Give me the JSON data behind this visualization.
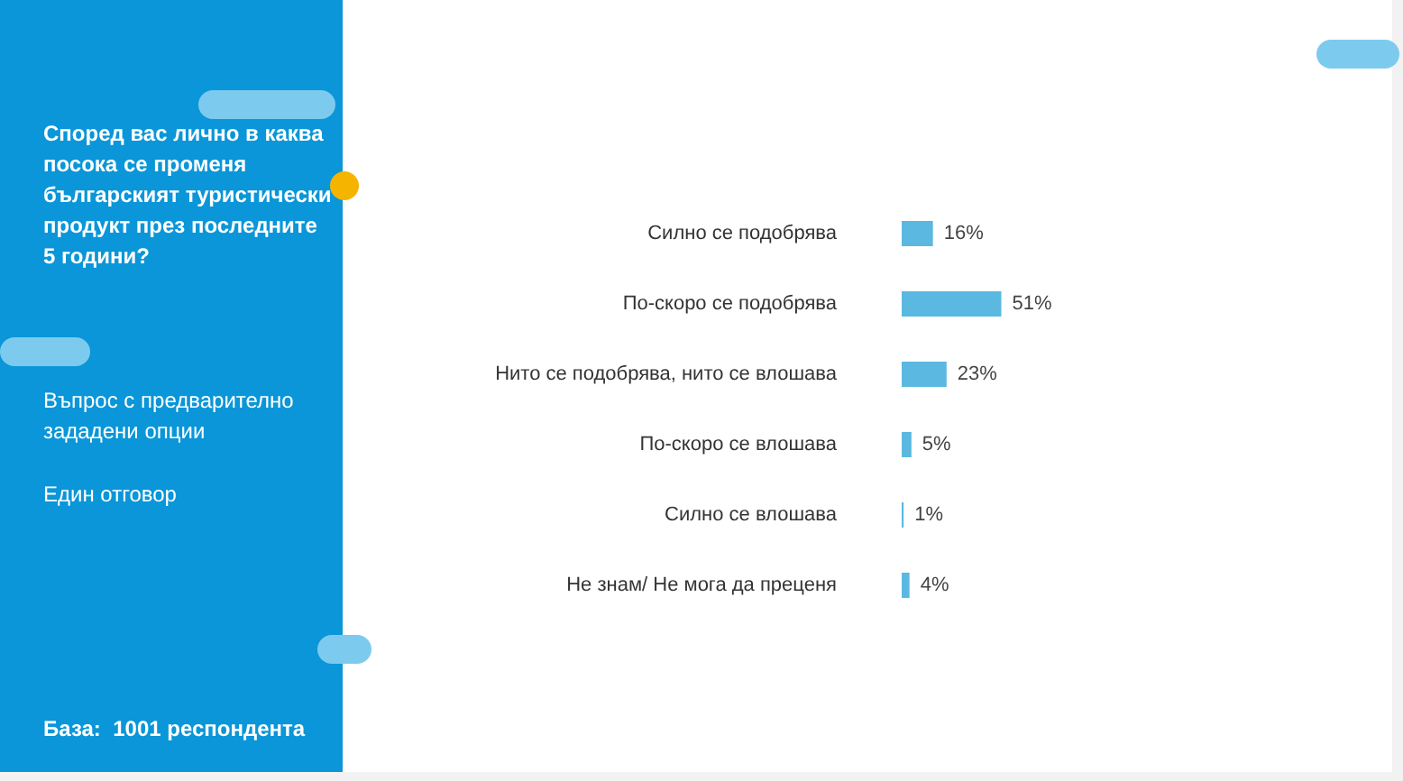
{
  "chart_data": {
    "type": "bar",
    "orientation": "horizontal",
    "title": "Според вас лично в каква посока се променя българският туристически продукт през последните 5 години?",
    "annotations": [
      "Въпрос с предварително зададени опции",
      "Един отговор",
      "База:  1001 респондента"
    ],
    "categories": [
      "Силно се подобрява",
      "По-скоро се подобрява",
      "Нито се подобрява, нито се влошава",
      "По-скоро се влошава",
      "Силно се влошава",
      "Не знам/ Не мога да преценя"
    ],
    "values": [
      16,
      51,
      23,
      5,
      1,
      4
    ],
    "value_labels": [
      "16%",
      "51%",
      "23%",
      "5%",
      "1%",
      "4%"
    ],
    "color": "#5bb8e0",
    "grid": false
  }
}
